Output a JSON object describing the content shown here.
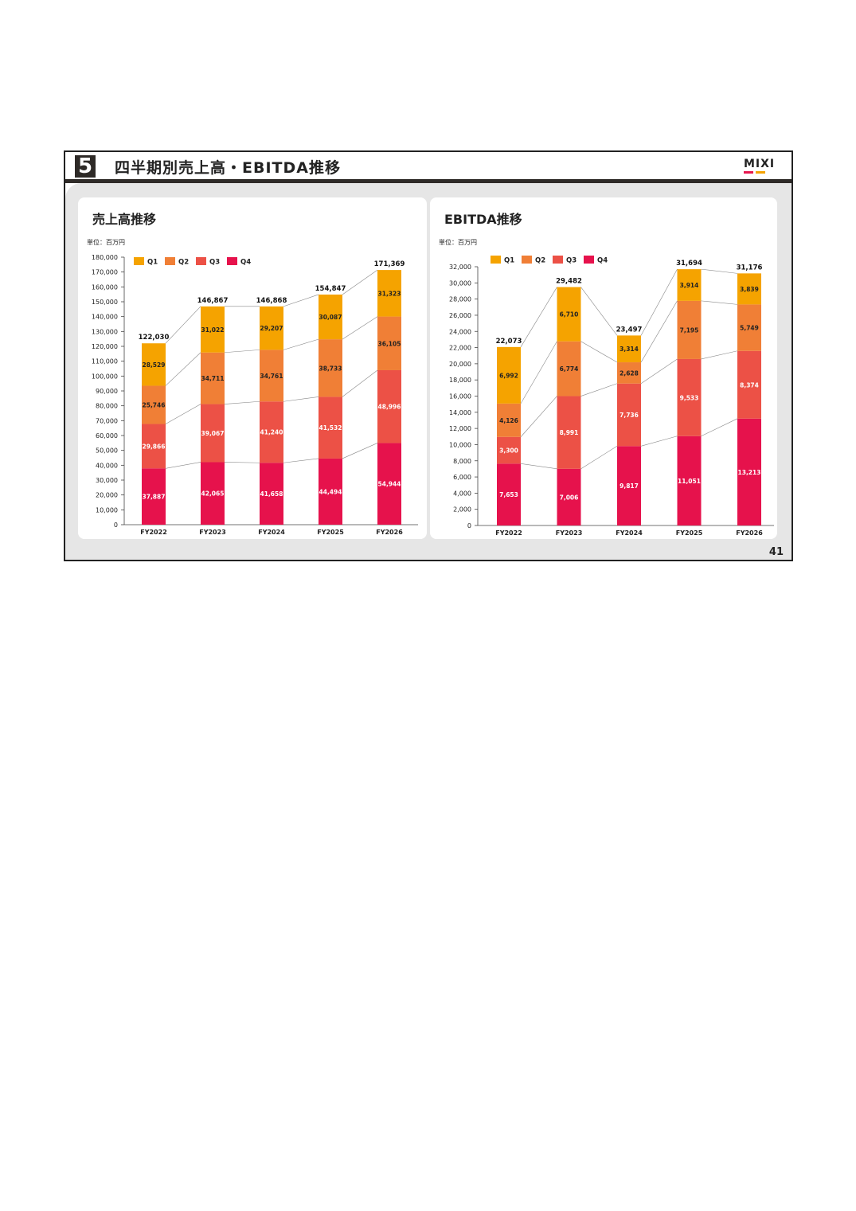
{
  "header": {
    "section_number": "5",
    "title": "四半期別売上高・EBITDA推移",
    "logo_text": "MIXI",
    "logo_colors": [
      "#e6174f",
      "#f5a300"
    ],
    "band_color": "#2e2a27"
  },
  "page_number": "41",
  "colors": {
    "Q1": "#f5a300",
    "Q2": "#f07f36",
    "Q3": "#ec5146",
    "Q4": "#e6124c"
  },
  "chart_data": [
    {
      "type": "bar",
      "stacked": true,
      "title": "売上高推移",
      "unit": "単位：百万円",
      "categories": [
        "FY2022",
        "FY2023",
        "FY2024",
        "FY2025",
        "FY2026"
      ],
      "series": [
        {
          "name": "Q4",
          "values": [
            37887,
            42065,
            41658,
            44494,
            54944
          ]
        },
        {
          "name": "Q3",
          "values": [
            29866,
            39067,
            41240,
            41532,
            48996
          ]
        },
        {
          "name": "Q2",
          "values": [
            25746,
            34711,
            34761,
            38733,
            36105
          ]
        },
        {
          "name": "Q1",
          "values": [
            28529,
            31022,
            29207,
            30087,
            31323
          ]
        }
      ],
      "totals": [
        122030,
        146867,
        146868,
        154847,
        171369
      ],
      "ylim": [
        0,
        180000
      ],
      "yticks": [
        0,
        10000,
        20000,
        30000,
        40000,
        50000,
        60000,
        70000,
        80000,
        90000,
        100000,
        110000,
        120000,
        130000,
        140000,
        150000,
        160000,
        170000,
        180000
      ],
      "legend": [
        "Q1",
        "Q2",
        "Q3",
        "Q4"
      ],
      "legend_position": "top-left"
    },
    {
      "type": "bar",
      "stacked": true,
      "title": "EBITDA推移",
      "unit": "単位：百万円",
      "categories": [
        "FY2022",
        "FY2023",
        "FY2024",
        "FY2025",
        "FY2026"
      ],
      "series": [
        {
          "name": "Q4",
          "values": [
            7653,
            7006,
            9817,
            11051,
            13213
          ]
        },
        {
          "name": "Q3",
          "values": [
            3300,
            8991,
            7736,
            9533,
            8374
          ]
        },
        {
          "name": "Q2",
          "values": [
            4126,
            6774,
            2628,
            7195,
            5749
          ]
        },
        {
          "name": "Q1",
          "values": [
            6992,
            6710,
            3314,
            3914,
            3839
          ]
        }
      ],
      "totals": [
        22073,
        29482,
        23497,
        31694,
        31176
      ],
      "ylim": [
        0,
        32000
      ],
      "yticks": [
        0,
        2000,
        4000,
        6000,
        8000,
        10000,
        12000,
        14000,
        16000,
        18000,
        20000,
        22000,
        24000,
        26000,
        28000,
        30000,
        32000
      ],
      "legend": [
        "Q1",
        "Q2",
        "Q3",
        "Q4"
      ],
      "legend_position": "top-left"
    }
  ]
}
